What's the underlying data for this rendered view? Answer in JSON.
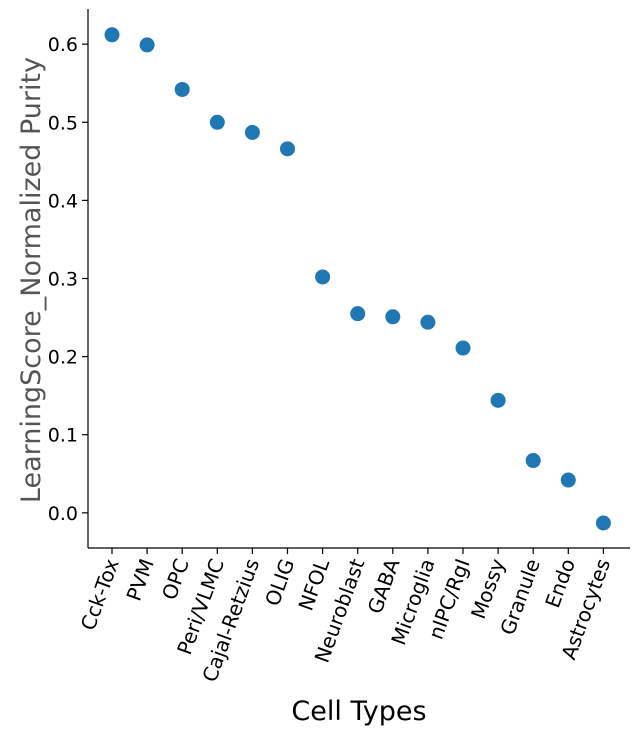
{
  "chart_data": {
    "type": "scatter",
    "title": "",
    "xlabel": "Cell Types",
    "ylabel": "LearningScore_Normalized Purity",
    "categories": [
      "Cck-Tox",
      "PVM",
      "OPC",
      "Peri/VLMC",
      "Cajal-Retzius",
      "OLIG",
      "NFOL",
      "Neuroblast",
      "GABA",
      "Microglia",
      "nIPC/RgI",
      "Mossy",
      "Granule",
      "Endo",
      "Astrocytes"
    ],
    "values": [
      0.612,
      0.599,
      0.542,
      0.5,
      0.487,
      0.466,
      0.302,
      0.255,
      0.251,
      0.244,
      0.211,
      0.144,
      0.067,
      0.042,
      -0.013
    ],
    "yticks": [
      "0.0",
      "0.1",
      "0.2",
      "0.3",
      "0.4",
      "0.5",
      "0.6"
    ],
    "ylim": [
      -0.045,
      0.645
    ],
    "grid": false,
    "marker_color": "#1f77b4",
    "x_tick_rotation_deg": -70
  }
}
